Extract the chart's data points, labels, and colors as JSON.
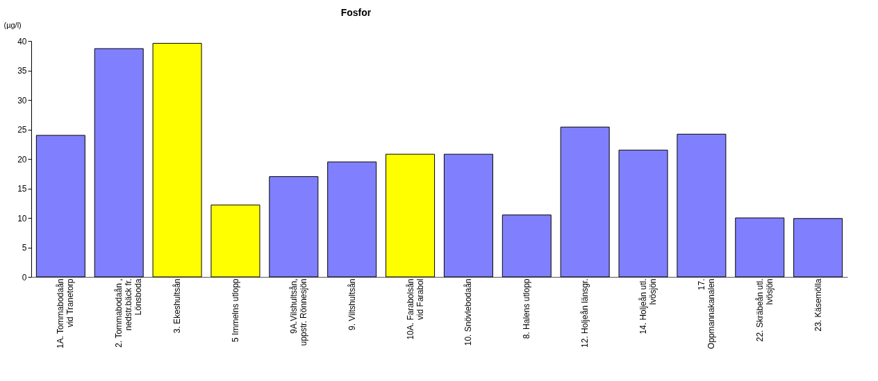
{
  "chart_data": {
    "type": "bar",
    "title": "Fosfor",
    "ylabel": "(µg/l)",
    "categories": [
      "1A. Tommabodaån\nvid Tranetorp",
      "2. Tommabodaån ,\nnedstr.bäck fr.\nLönsboda",
      "3. Ekeshultsån",
      "5 Immelns utlopp",
      "9A.Vilshultsån,\nuppstr. Rönnesjön",
      "9. Viltshultsån",
      "10A. Farabolsån\nvid Farabol",
      "10. Snövlebodaån",
      "8. Halens utlopp",
      "12. Holjeån länsgr.",
      "14. Holjeån utl.\nIvösjön",
      "17.\nOppmannakanalen",
      "22. Skräbeån utl.\nIvösjön",
      "23. Käsemölla"
    ],
    "values": [
      24.0,
      38.7,
      39.6,
      12.2,
      17.0,
      19.5,
      20.8,
      20.8,
      10.5,
      25.4,
      21.5,
      24.2,
      10.0,
      9.9
    ],
    "colors": [
      "#8080ff",
      "#8080ff",
      "#ffff00",
      "#ffff00",
      "#8080ff",
      "#8080ff",
      "#ffff00",
      "#8080ff",
      "#8080ff",
      "#8080ff",
      "#8080ff",
      "#8080ff",
      "#8080ff",
      "#8080ff"
    ],
    "ylim": [
      0,
      40
    ],
    "yticks": [
      0,
      5,
      10,
      15,
      20,
      25,
      30,
      35,
      40
    ],
    "grid": false
  }
}
